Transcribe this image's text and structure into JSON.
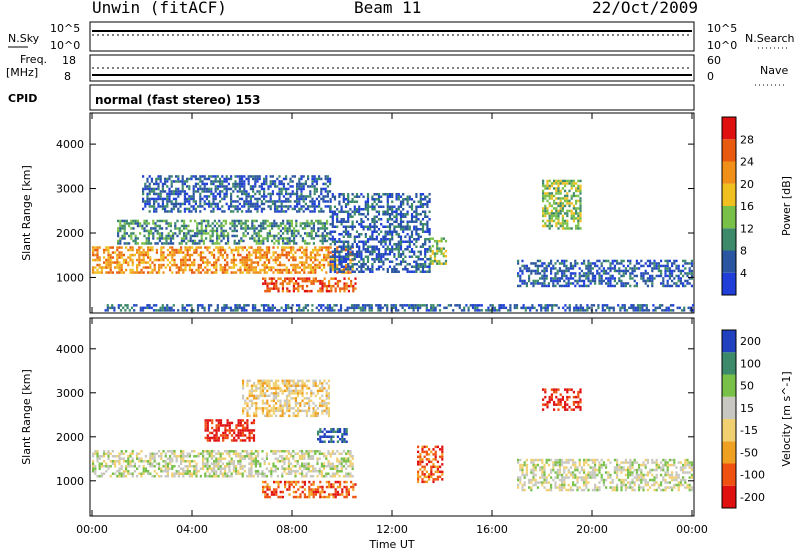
{
  "header": {
    "station": "Unwin (fitACF)",
    "beam": "Beam 11",
    "date": "22/Oct/2009"
  },
  "top_panels": {
    "nsky_label": "N.Sky",
    "nsky_ticks": [
      "10^5",
      "10^0"
    ],
    "nsearch_label": "N.Search",
    "freq_label": "Freq.",
    "freq_unit": "[MHz]",
    "freq_ticks": [
      "18",
      "8"
    ],
    "nave_label": "Nave",
    "nave_ticks": [
      "60",
      "0"
    ],
    "cpid_label": "CPID",
    "cpid_text": "normal (fast stereo) 153"
  },
  "colors": {
    "power_scale": [
      "#1f3fd8",
      "#2a55a0",
      "#3c8a6a",
      "#78c048",
      "#f0c020",
      "#f09018",
      "#e85a10",
      "#e01010"
    ],
    "velocity_scale": [
      "#e01010",
      "#f05010",
      "#f0a020",
      "#f0d070",
      "#c8c8c0",
      "#78c048",
      "#3c8a6a",
      "#2040c0"
    ]
  },
  "chart_data": [
    {
      "type": "heatmap",
      "name": "power",
      "ylabel": "Slant Range [km]",
      "yticks": [
        "1000",
        "2000",
        "3000",
        "4000"
      ],
      "ylim": [
        200,
        4700
      ],
      "xlim": [
        0,
        24
      ],
      "colorbar_label": "Power [dB]",
      "colorbar_ticks": [
        "4",
        "8",
        "12",
        "16",
        "20",
        "24",
        "28"
      ],
      "colorbar_range": [
        0,
        32
      ],
      "regions": [
        {
          "t0": 0.0,
          "t1": 10.4,
          "r0": 1100,
          "r1": 1700,
          "level": 5
        },
        {
          "t0": 6.8,
          "t1": 10.5,
          "r0": 700,
          "r1": 1000,
          "level": 6
        },
        {
          "t0": 1.0,
          "t1": 9.5,
          "r0": 1750,
          "r1": 2300,
          "level": 2
        },
        {
          "t0": 2.0,
          "t1": 9.5,
          "r0": 2500,
          "r1": 3300,
          "level": 1
        },
        {
          "t0": 9.5,
          "t1": 13.5,
          "r0": 1100,
          "r1": 2900,
          "level": 1
        },
        {
          "t0": 13.5,
          "t1": 14.2,
          "r0": 1300,
          "r1": 1900,
          "level": 3
        },
        {
          "t0": 18.0,
          "t1": 19.5,
          "r0": 2100,
          "r1": 3200,
          "level": 3
        },
        {
          "t0": 17.0,
          "t1": 24.0,
          "r0": 800,
          "r1": 1400,
          "level": 1
        },
        {
          "t0": 0.5,
          "t1": 24.0,
          "r0": 250,
          "r1": 400,
          "level": 1
        }
      ]
    },
    {
      "type": "heatmap",
      "name": "velocity",
      "ylabel": "Slant Range [km]",
      "yticks": [
        "1000",
        "2000",
        "3000",
        "4000"
      ],
      "ylim": [
        200,
        4700
      ],
      "xlim": [
        0,
        24
      ],
      "xlabel": "Time UT",
      "xticks": [
        "00:00",
        "04:00",
        "08:00",
        "12:00",
        "16:00",
        "20:00",
        "00:00"
      ],
      "colorbar_label": "Velocity [m s^-1]",
      "colorbar_ticks": [
        "-200",
        "-100",
        "-50",
        "-15",
        "15",
        "50",
        "100",
        "200"
      ],
      "colorbar_range": [
        -250,
        250
      ],
      "regions": [
        {
          "t0": 0.0,
          "t1": 10.4,
          "r0": 1100,
          "r1": 1700,
          "level": 4
        },
        {
          "t0": 6.8,
          "t1": 10.5,
          "r0": 650,
          "r1": 1000,
          "level": 1
        },
        {
          "t0": 4.5,
          "t1": 6.5,
          "r0": 1900,
          "r1": 2400,
          "level": 0
        },
        {
          "t0": 6.0,
          "t1": 9.5,
          "r0": 2500,
          "r1": 3300,
          "level": 3
        },
        {
          "t0": 9.0,
          "t1": 10.2,
          "r0": 1900,
          "r1": 2200,
          "level": 7
        },
        {
          "t0": 13.0,
          "t1": 14.0,
          "r0": 1000,
          "r1": 1800,
          "level": 1
        },
        {
          "t0": 18.0,
          "t1": 19.5,
          "r0": 2600,
          "r1": 3100,
          "level": 0
        },
        {
          "t0": 17.0,
          "t1": 24.0,
          "r0": 800,
          "r1": 1500,
          "level": 4
        }
      ]
    }
  ]
}
